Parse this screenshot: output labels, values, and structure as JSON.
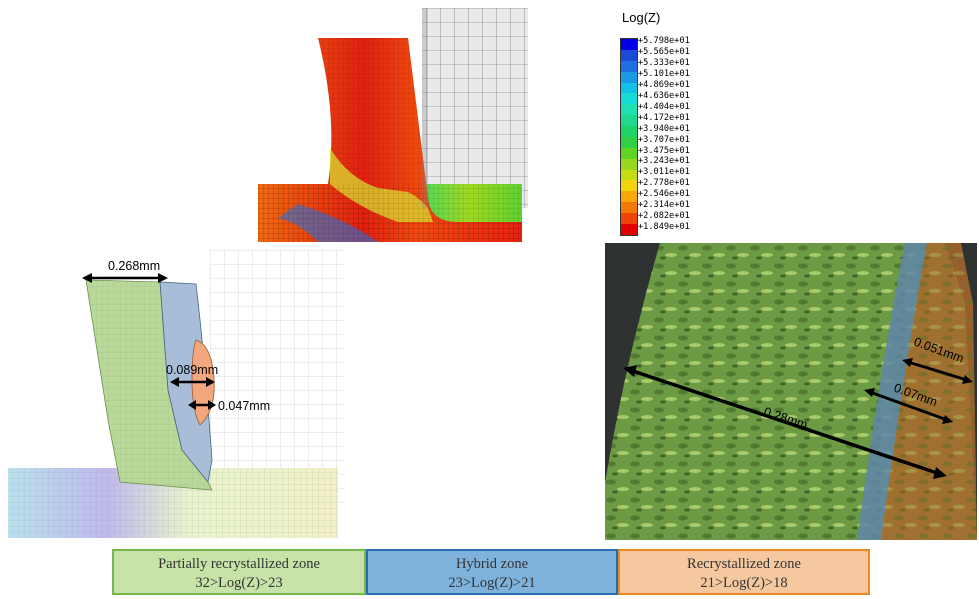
{
  "legend": {
    "title": "Log(Z)",
    "values": [
      "+5.798e+01",
      "+5.565e+01",
      "+5.333e+01",
      "+5.101e+01",
      "+4.869e+01",
      "+4.636e+01",
      "+4.404e+01",
      "+4.172e+01",
      "+3.940e+01",
      "+3.707e+01",
      "+3.475e+01",
      "+3.243e+01",
      "+3.011e+01",
      "+2.778e+01",
      "+2.546e+01",
      "+2.314e+01",
      "+2.082e+01",
      "+1.849e+01"
    ],
    "colors": [
      "#0000e6",
      "#1a4ad8",
      "#1e6fe0",
      "#1a9ae6",
      "#12c0e8",
      "#16dcd8",
      "#1ee0b0",
      "#20d890",
      "#1ed46a",
      "#30d040",
      "#60d424",
      "#98d81c",
      "#c8dc14",
      "#f0d40c",
      "#f8a80a",
      "#f47a08",
      "#ee4406",
      "#e00000"
    ]
  },
  "dimensions": {
    "sim_width": "0.268mm",
    "sim_hybrid": "0.089mm",
    "sim_recryst": "0.047mm",
    "micro_total": "0.28mm",
    "micro_hybrid": "0.07mm",
    "micro_recryst": "0.051mm"
  },
  "zones": [
    {
      "name": "Partially recrystallized zone",
      "range": "32>Log(Z)>23",
      "fill": "#c7e3a7",
      "border": "#74b84a"
    },
    {
      "name": "Hybrid zone",
      "range": "23>Log(Z)>21",
      "fill": "#7fb2dc",
      "border": "#2b6aa8"
    },
    {
      "name": "Recrystallized zone",
      "range": "21>Log(Z)>18",
      "fill": "#f5c8a0",
      "border": "#e88a2a"
    }
  ]
}
